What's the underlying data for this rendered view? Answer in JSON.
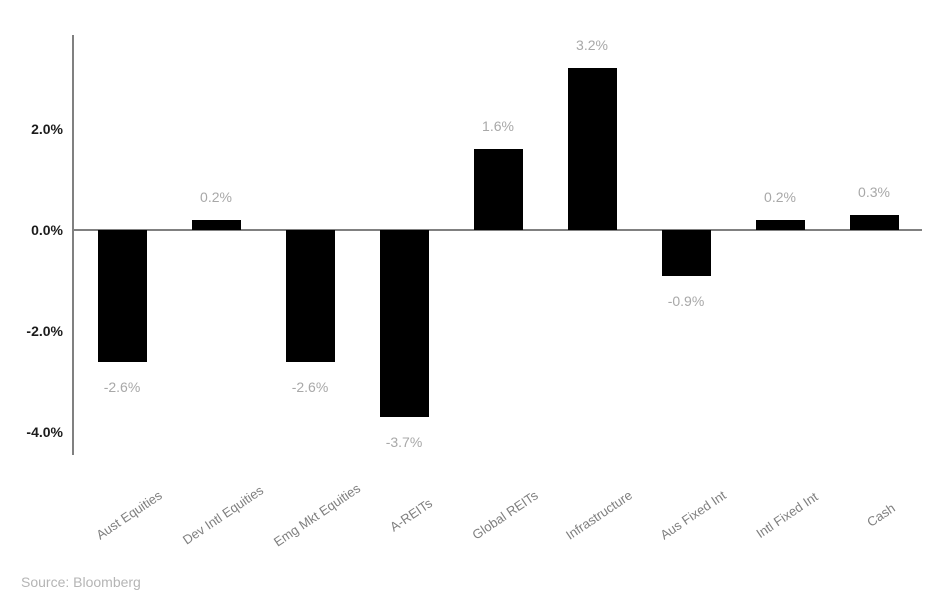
{
  "chart_data": {
    "type": "bar",
    "title": "",
    "xlabel": "",
    "ylabel": "",
    "categories": [
      "Aust Equities",
      "Dev Intl Equities",
      "Emg Mkt Equities",
      "A-REITs",
      "Global REITs",
      "Infrastructure",
      "Aus Fixed Int",
      "Intl Fixed Int",
      "Cash"
    ],
    "values": [
      -2.6,
      0.2,
      -2.6,
      -3.7,
      1.6,
      3.2,
      -0.9,
      0.2,
      0.3
    ],
    "data_labels": [
      "-2.6%",
      "0.2%",
      "-2.6%",
      "-3.7%",
      "1.6%",
      "3.2%",
      "-0.9%",
      "0.2%",
      "0.3%"
    ],
    "y_ticks": [
      {
        "label": "2.0%",
        "value": 2.0
      },
      {
        "label": "0.0%",
        "value": 0.0
      },
      {
        "label": "-2.0%",
        "value": -2.0
      },
      {
        "label": "-4.0%",
        "value": -4.0
      }
    ],
    "ylim": [
      -4.45,
      3.85
    ],
    "grid": false,
    "legend": false,
    "bar_color": "#000000",
    "axis_color": "#808080",
    "tick_label_color": "#1c1c1c",
    "data_label_color": "#a8a8a8",
    "category_label_color": "#7f7f7f"
  },
  "source_note": "Source: Bloomberg"
}
